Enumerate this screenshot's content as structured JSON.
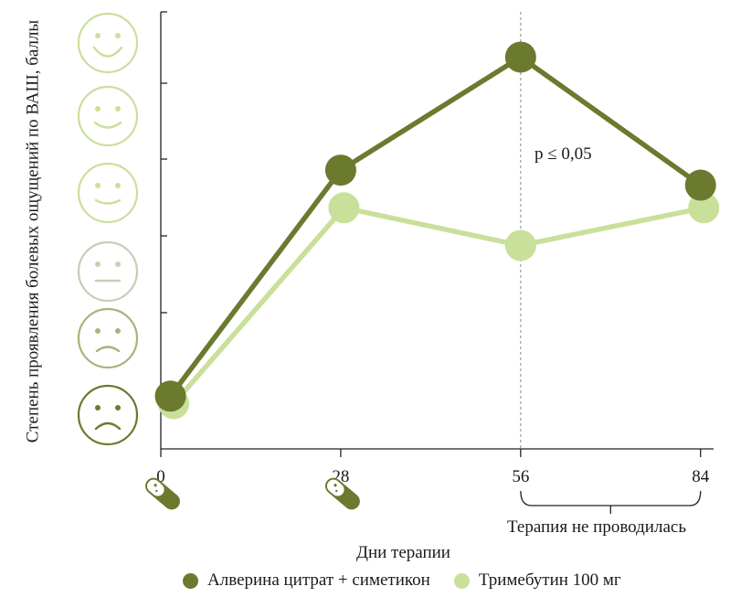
{
  "chart_data": {
    "type": "line",
    "x": [
      0,
      28,
      56,
      84
    ],
    "x_ticks": [
      "0",
      "28",
      "56",
      "84"
    ],
    "xlabel": "Дни терапии",
    "ylabel": "Степень проявления болевых ощущений по ВАШ, баллы",
    "xlim": [
      0,
      86
    ],
    "ylim": [
      0,
      5.8
    ],
    "y_scale_faces": [
      "very-sad-face",
      "sad-face",
      "neutral-face",
      "slight-smile-face",
      "smile-face",
      "big-smile-face"
    ],
    "series": [
      {
        "name": "Алверина цитрат + симетикон",
        "color": "#6b7a2e",
        "points": [
          [
            1.5,
            0.7
          ],
          [
            28,
            3.7
          ],
          [
            56,
            5.2
          ],
          [
            84,
            3.5
          ]
        ]
      },
      {
        "name": "Тримебутин 100 мг",
        "color": "#c9e09a",
        "points": [
          [
            2.0,
            0.6
          ],
          [
            28.5,
            3.2
          ],
          [
            56,
            2.7
          ],
          [
            84.5,
            3.2
          ]
        ]
      }
    ],
    "annotation": "p ≤ 0,05",
    "bracket_label": "Терапия не проводилась",
    "bracket_range": [
      56,
      84
    ],
    "pill_icons_at": [
      0,
      28
    ],
    "grid": false
  }
}
